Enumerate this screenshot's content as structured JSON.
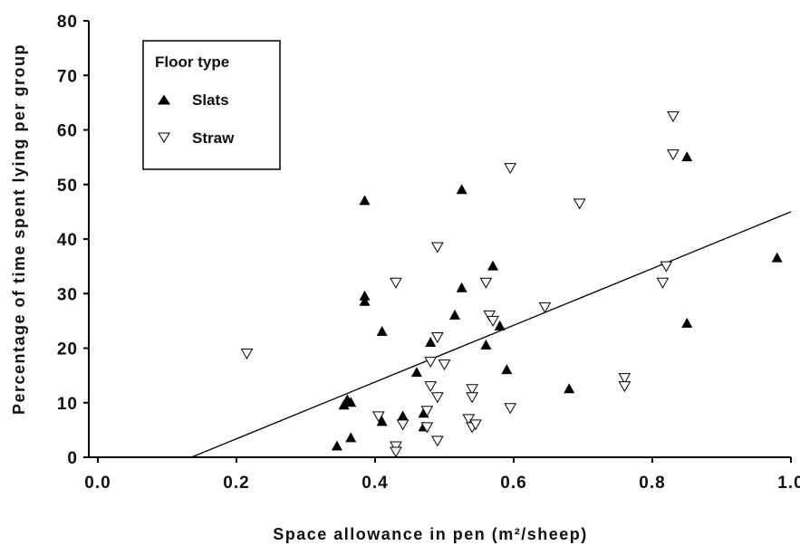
{
  "chart_data": {
    "type": "scatter",
    "xlabel": "Space allowance in pen (m²/sheep)",
    "ylabel": "Percentage of time spent lying per group",
    "xlim": [
      0.0,
      1.0
    ],
    "ylim": [
      0,
      80
    ],
    "x_ticks": [
      "0.0",
      "0.2",
      "0.4",
      "0.6",
      "0.8",
      "1.0"
    ],
    "y_ticks": [
      "0",
      "10",
      "20",
      "30",
      "40",
      "50",
      "60",
      "70",
      "80"
    ],
    "grid": false,
    "legend": {
      "title": "Floor type",
      "placement": "top-left"
    },
    "series": [
      {
        "name": "Slats",
        "marker": "filled-triangle-up",
        "color": "#000000",
        "points": [
          [
            0.345,
            2
          ],
          [
            0.355,
            9.5
          ],
          [
            0.36,
            10.5
          ],
          [
            0.365,
            10
          ],
          [
            0.365,
            3.5
          ],
          [
            0.385,
            47
          ],
          [
            0.385,
            29.5
          ],
          [
            0.385,
            28.5
          ],
          [
            0.41,
            23
          ],
          [
            0.41,
            6.5
          ],
          [
            0.44,
            7.5
          ],
          [
            0.46,
            15.5
          ],
          [
            0.47,
            8
          ],
          [
            0.47,
            5.5
          ],
          [
            0.48,
            21
          ],
          [
            0.515,
            26
          ],
          [
            0.525,
            49
          ],
          [
            0.525,
            31
          ],
          [
            0.56,
            20.5
          ],
          [
            0.57,
            35
          ],
          [
            0.58,
            24
          ],
          [
            0.59,
            16
          ],
          [
            0.68,
            12.5
          ],
          [
            0.85,
            55
          ],
          [
            0.85,
            24.5
          ],
          [
            0.98,
            36.5
          ]
        ]
      },
      {
        "name": "Straw",
        "marker": "open-triangle-down",
        "color": "#000000",
        "points": [
          [
            0.215,
            19
          ],
          [
            0.405,
            7.5
          ],
          [
            0.43,
            32
          ],
          [
            0.43,
            2
          ],
          [
            0.43,
            1
          ],
          [
            0.44,
            6
          ],
          [
            0.475,
            8.5
          ],
          [
            0.475,
            5.5
          ],
          [
            0.48,
            17.5
          ],
          [
            0.48,
            13
          ],
          [
            0.49,
            38.5
          ],
          [
            0.49,
            22
          ],
          [
            0.49,
            11
          ],
          [
            0.49,
            3
          ],
          [
            0.5,
            17
          ],
          [
            0.535,
            7
          ],
          [
            0.54,
            12.5
          ],
          [
            0.54,
            11
          ],
          [
            0.54,
            5.5
          ],
          [
            0.545,
            6
          ],
          [
            0.56,
            32
          ],
          [
            0.565,
            26
          ],
          [
            0.57,
            25
          ],
          [
            0.595,
            53
          ],
          [
            0.595,
            9
          ],
          [
            0.645,
            27.5
          ],
          [
            0.695,
            46.5
          ],
          [
            0.76,
            14.5
          ],
          [
            0.76,
            13
          ],
          [
            0.815,
            32
          ],
          [
            0.82,
            35
          ],
          [
            0.83,
            62.5
          ],
          [
            0.83,
            55.5
          ]
        ]
      }
    ],
    "trend_line": {
      "x": [
        0.135,
        1.0
      ],
      "y": [
        0,
        45
      ]
    }
  }
}
